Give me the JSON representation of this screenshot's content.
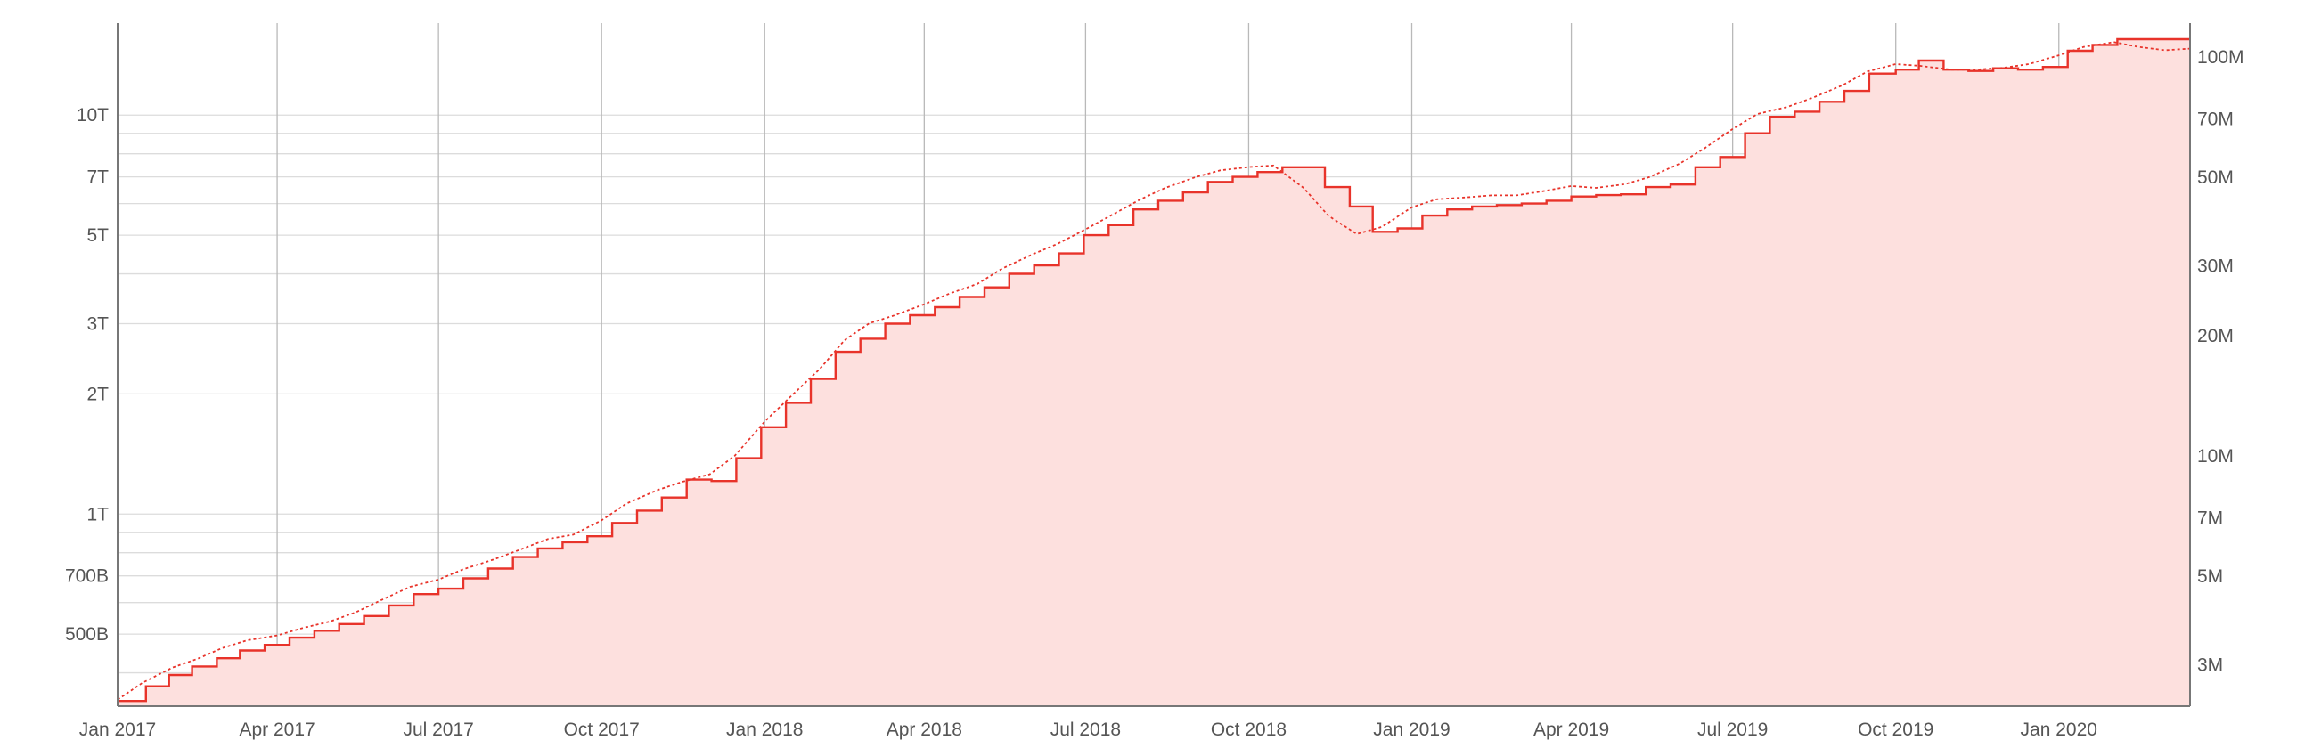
{
  "chart_data": {
    "type": "line",
    "title": "",
    "xlabel": "",
    "x_range": [
      "2017-01-01",
      "2020-03-15"
    ],
    "x_ticks": [
      {
        "date": "2017-01-01",
        "label": "Jan 2017"
      },
      {
        "date": "2017-04-01",
        "label": "Apr 2017"
      },
      {
        "date": "2017-07-01",
        "label": "Jul 2017"
      },
      {
        "date": "2017-10-01",
        "label": "Oct 2017"
      },
      {
        "date": "2018-01-01",
        "label": "Jan 2018"
      },
      {
        "date": "2018-04-01",
        "label": "Apr 2018"
      },
      {
        "date": "2018-07-01",
        "label": "Jul 2018"
      },
      {
        "date": "2018-10-01",
        "label": "Oct 2018"
      },
      {
        "date": "2019-01-01",
        "label": "Jan 2019"
      },
      {
        "date": "2019-04-01",
        "label": "Apr 2019"
      },
      {
        "date": "2019-07-01",
        "label": "Jul 2019"
      },
      {
        "date": "2019-10-01",
        "label": "Oct 2019"
      },
      {
        "date": "2020-01-01",
        "label": "Jan 2020"
      }
    ],
    "y_left": {
      "scale": "log",
      "range": [
        330000000000,
        17000000000000
      ],
      "ticks": [
        {
          "value": 500000000000,
          "label": "500B"
        },
        {
          "value": 700000000000,
          "label": "700B"
        },
        {
          "value": 1000000000000,
          "label": "1T"
        },
        {
          "value": 2000000000000,
          "label": "2T"
        },
        {
          "value": 3000000000000,
          "label": "3T"
        },
        {
          "value": 5000000000000,
          "label": "5T"
        },
        {
          "value": 7000000000000,
          "label": "7T"
        },
        {
          "value": 10000000000000,
          "label": "10T"
        }
      ],
      "minor_gridlines": [
        400000000000,
        600000000000,
        800000000000,
        900000000000,
        4000000000000,
        6000000000000,
        8000000000000,
        9000000000000
      ]
    },
    "y_right": {
      "scale": "log",
      "range": [
        2360000000,
        121600000000
      ],
      "ticks": [
        {
          "value": 3000000000,
          "label": "3M"
        },
        {
          "value": 5000000000,
          "label": "5M"
        },
        {
          "value": 7000000000,
          "label": "7M"
        },
        {
          "value": 10000000000,
          "label": "10M"
        },
        {
          "value": 20000000000,
          "label": "20M"
        },
        {
          "value": 30000000000,
          "label": "30M"
        },
        {
          "value": 50000000000,
          "label": "50M"
        },
        {
          "value": 70000000000,
          "label": "70M"
        },
        {
          "value": 100000000000,
          "label": "100M"
        }
      ]
    },
    "grid": true,
    "legend": "none",
    "colors": {
      "line": "#e8332a",
      "fill": "#fde0de"
    },
    "series": [
      {
        "style": "step",
        "axis": "left",
        "points": [
          [
            "2017-01-01",
            340000000000
          ],
          [
            "2017-01-17",
            370000000000
          ],
          [
            "2017-01-30",
            395000000000
          ],
          [
            "2017-02-12",
            415000000000
          ],
          [
            "2017-02-26",
            435000000000
          ],
          [
            "2017-03-11",
            455000000000
          ],
          [
            "2017-03-25",
            470000000000
          ],
          [
            "2017-04-08",
            490000000000
          ],
          [
            "2017-04-22",
            510000000000
          ],
          [
            "2017-05-06",
            530000000000
          ],
          [
            "2017-05-20",
            555000000000
          ],
          [
            "2017-06-03",
            590000000000
          ],
          [
            "2017-06-17",
            630000000000
          ],
          [
            "2017-07-01",
            650000000000
          ],
          [
            "2017-07-15",
            690000000000
          ],
          [
            "2017-07-29",
            730000000000
          ],
          [
            "2017-08-12",
            780000000000
          ],
          [
            "2017-08-26",
            820000000000
          ],
          [
            "2017-09-09",
            850000000000
          ],
          [
            "2017-09-23",
            880000000000
          ],
          [
            "2017-10-07",
            950000000000
          ],
          [
            "2017-10-21",
            1020000000000
          ],
          [
            "2017-11-04",
            1100000000000
          ],
          [
            "2017-11-18",
            1220000000000
          ],
          [
            "2017-12-02",
            1210000000000
          ],
          [
            "2017-12-16",
            1380000000000
          ],
          [
            "2017-12-30",
            1650000000000
          ],
          [
            "2018-01-13",
            1900000000000
          ],
          [
            "2018-01-27",
            2180000000000
          ],
          [
            "2018-02-10",
            2550000000000
          ],
          [
            "2018-02-24",
            2750000000000
          ],
          [
            "2018-03-10",
            3000000000000
          ],
          [
            "2018-03-24",
            3150000000000
          ],
          [
            "2018-04-07",
            3300000000000
          ],
          [
            "2018-04-21",
            3500000000000
          ],
          [
            "2018-05-05",
            3700000000000
          ],
          [
            "2018-05-19",
            4000000000000
          ],
          [
            "2018-06-02",
            4200000000000
          ],
          [
            "2018-06-16",
            4500000000000
          ],
          [
            "2018-06-30",
            5000000000000
          ],
          [
            "2018-07-14",
            5300000000000
          ],
          [
            "2018-07-28",
            5800000000000
          ],
          [
            "2018-08-11",
            6100000000000
          ],
          [
            "2018-08-25",
            6400000000000
          ],
          [
            "2018-09-08",
            6800000000000
          ],
          [
            "2018-09-22",
            7000000000000
          ],
          [
            "2018-10-06",
            7200000000000
          ],
          [
            "2018-10-20",
            7400000000000
          ],
          [
            "2018-11-13",
            6600000000000
          ],
          [
            "2018-11-27",
            5900000000000
          ],
          [
            "2018-12-10",
            5100000000000
          ],
          [
            "2018-12-24",
            5200000000000
          ],
          [
            "2019-01-07",
            5600000000000
          ],
          [
            "2019-01-21",
            5800000000000
          ],
          [
            "2019-02-04",
            5900000000000
          ],
          [
            "2019-02-18",
            5950000000000
          ],
          [
            "2019-03-04",
            6000000000000
          ],
          [
            "2019-03-18",
            6100000000000
          ],
          [
            "2019-04-01",
            6250000000000
          ],
          [
            "2019-04-15",
            6300000000000
          ],
          [
            "2019-04-29",
            6330000000000
          ],
          [
            "2019-05-13",
            6600000000000
          ],
          [
            "2019-05-27",
            6700000000000
          ],
          [
            "2019-06-10",
            7400000000000
          ],
          [
            "2019-06-24",
            7850000000000
          ],
          [
            "2019-07-08",
            9000000000000
          ],
          [
            "2019-07-22",
            9900000000000
          ],
          [
            "2019-08-05",
            10200000000000
          ],
          [
            "2019-08-19",
            10800000000000
          ],
          [
            "2019-09-02",
            11500000000000
          ],
          [
            "2019-09-16",
            12700000000000
          ],
          [
            "2019-10-01",
            13000000000000
          ],
          [
            "2019-10-14",
            13700000000000
          ],
          [
            "2019-10-28",
            13000000000000
          ],
          [
            "2019-11-11",
            12900000000000
          ],
          [
            "2019-11-25",
            13100000000000
          ],
          [
            "2019-12-09",
            13000000000000
          ],
          [
            "2019-12-23",
            13200000000000
          ],
          [
            "2020-01-06",
            14500000000000
          ],
          [
            "2020-01-20",
            15000000000000
          ],
          [
            "2020-02-03",
            15500000000000
          ],
          [
            "2020-02-17",
            15500000000000
          ],
          [
            "2020-03-15",
            15500000000000
          ]
        ]
      },
      {
        "style": "dotted",
        "axis": "right",
        "points": [
          [
            "2017-01-01",
            2450000000
          ],
          [
            "2017-01-15",
            2700000000
          ],
          [
            "2017-02-01",
            2950000000
          ],
          [
            "2017-02-15",
            3100000000
          ],
          [
            "2017-03-01",
            3300000000
          ],
          [
            "2017-03-15",
            3450000000
          ],
          [
            "2017-04-01",
            3550000000
          ],
          [
            "2017-04-15",
            3700000000
          ],
          [
            "2017-05-01",
            3850000000
          ],
          [
            "2017-05-15",
            4050000000
          ],
          [
            "2017-06-01",
            4400000000
          ],
          [
            "2017-06-15",
            4700000000
          ],
          [
            "2017-07-01",
            4900000000
          ],
          [
            "2017-07-15",
            5200000000
          ],
          [
            "2017-08-01",
            5500000000
          ],
          [
            "2017-08-15",
            5800000000
          ],
          [
            "2017-09-01",
            6200000000
          ],
          [
            "2017-09-15",
            6350000000
          ],
          [
            "2017-10-01",
            6900000000
          ],
          [
            "2017-10-15",
            7600000000
          ],
          [
            "2017-11-01",
            8200000000
          ],
          [
            "2017-11-15",
            8600000000
          ],
          [
            "2017-12-01",
            9000000000
          ],
          [
            "2017-12-15",
            10000000000
          ],
          [
            "2018-01-01",
            12200000000
          ],
          [
            "2018-01-15",
            14000000000
          ],
          [
            "2018-02-01",
            16500000000
          ],
          [
            "2018-02-15",
            19500000000
          ],
          [
            "2018-03-01",
            21500000000
          ],
          [
            "2018-03-15",
            22500000000
          ],
          [
            "2018-04-01",
            24000000000
          ],
          [
            "2018-04-15",
            25500000000
          ],
          [
            "2018-05-01",
            27000000000
          ],
          [
            "2018-05-15",
            29500000000
          ],
          [
            "2018-06-01",
            32000000000
          ],
          [
            "2018-06-15",
            34000000000
          ],
          [
            "2018-07-01",
            37000000000
          ],
          [
            "2018-07-15",
            40000000000
          ],
          [
            "2018-08-01",
            44000000000
          ],
          [
            "2018-08-15",
            47000000000
          ],
          [
            "2018-09-01",
            50000000000
          ],
          [
            "2018-09-15",
            52000000000
          ],
          [
            "2018-10-01",
            53000000000
          ],
          [
            "2018-10-15",
            53500000000
          ],
          [
            "2018-11-01",
            47000000000
          ],
          [
            "2018-11-15",
            40000000000
          ],
          [
            "2018-12-01",
            36000000000
          ],
          [
            "2018-12-15",
            37500000000
          ],
          [
            "2019-01-01",
            42000000000
          ],
          [
            "2019-01-15",
            44000000000
          ],
          [
            "2019-02-01",
            44500000000
          ],
          [
            "2019-02-15",
            45000000000
          ],
          [
            "2019-03-01",
            45000000000
          ],
          [
            "2019-03-15",
            46000000000
          ],
          [
            "2019-04-01",
            47500000000
          ],
          [
            "2019-04-15",
            47000000000
          ],
          [
            "2019-05-01",
            48000000000
          ],
          [
            "2019-05-15",
            50000000000
          ],
          [
            "2019-06-01",
            54000000000
          ],
          [
            "2019-06-15",
            59000000000
          ],
          [
            "2019-07-01",
            66000000000
          ],
          [
            "2019-07-15",
            72000000000
          ],
          [
            "2019-08-01",
            75000000000
          ],
          [
            "2019-08-15",
            79000000000
          ],
          [
            "2019-09-01",
            85000000000
          ],
          [
            "2019-09-15",
            92000000000
          ],
          [
            "2019-10-01",
            96000000000
          ],
          [
            "2019-10-15",
            95000000000
          ],
          [
            "2019-11-01",
            93000000000
          ],
          [
            "2019-11-15",
            93000000000
          ],
          [
            "2019-12-01",
            94000000000
          ],
          [
            "2019-12-15",
            96000000000
          ],
          [
            "2020-01-01",
            101000000000
          ],
          [
            "2020-01-15",
            106000000000
          ],
          [
            "2020-02-01",
            109000000000
          ],
          [
            "2020-02-15",
            106000000000
          ],
          [
            "2020-03-01",
            104000000000
          ],
          [
            "2020-03-15",
            105000000000
          ]
        ]
      }
    ]
  }
}
